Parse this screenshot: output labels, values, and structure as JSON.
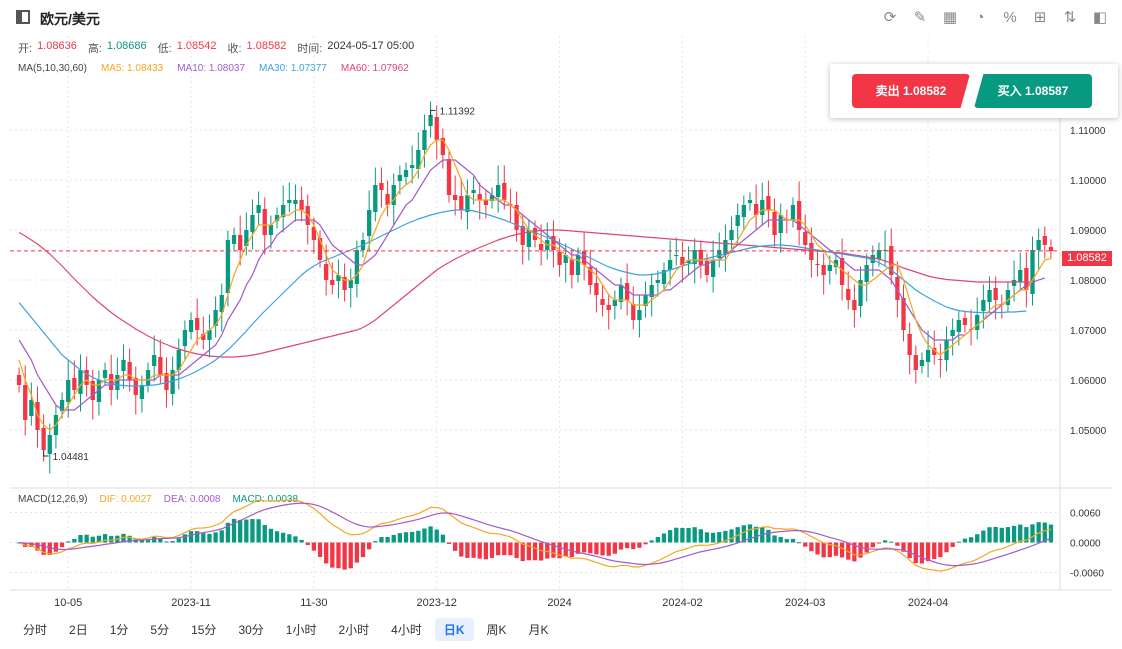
{
  "header": {
    "title": "欧元/美元",
    "tools": [
      {
        "name": "refresh-icon",
        "glyph": "⟳"
      },
      {
        "name": "draw-icon",
        "glyph": "✎"
      },
      {
        "name": "chart-type-icon",
        "glyph": "▦"
      },
      {
        "name": "indicator-icon",
        "glyph": "◔"
      },
      {
        "name": "percent-icon",
        "glyph": "%"
      },
      {
        "name": "layout-icon",
        "glyph": "⊞"
      },
      {
        "name": "compare-icon",
        "glyph": "⇅"
      },
      {
        "name": "panel-icon",
        "glyph": "◧"
      }
    ]
  },
  "ohlc": {
    "open_label": "开:",
    "open": "1.08636",
    "high_label": "高:",
    "high": "1.08686",
    "low_label": "低:",
    "low": "1.08542",
    "close_label": "收:",
    "close": "1.08582",
    "time_label": "时间:",
    "time": "2024-05-17 05:00"
  },
  "ma_legend": {
    "label": "MA(5,10,30,60)",
    "ma5": "MA5: 1.08433",
    "ma10": "MA10: 1.08037",
    "ma30": "MA30: 1.07377",
    "ma60": "MA60: 1.07962"
  },
  "macd_legend": {
    "label": "MACD(12,26,9)",
    "dif": "DIF: 0.0027",
    "dea": "DEA: 0.0008",
    "macd": "MACD: 0.0038"
  },
  "trade": {
    "sell": "卖出 1.08582",
    "buy": "买入 1.08587"
  },
  "current_price": "1.08582",
  "intervals": [
    "分时",
    "2日",
    "1分",
    "5分",
    "15分",
    "30分",
    "1小时",
    "2小时",
    "4小时",
    "日K",
    "周K",
    "月K"
  ],
  "active_interval": "日K",
  "colors": {
    "up": "#089981",
    "down": "#f23645",
    "ma5": "#f5a623",
    "ma10": "#a35bc9",
    "ma30": "#3ba3e0",
    "ma60": "#e0457b",
    "dif": "#f5a623",
    "dea": "#a35bc9"
  },
  "chart_data": {
    "type": "candlestick",
    "price_axis": {
      "min": 1.04,
      "max": 1.12,
      "ticks": [
        "1.11000",
        "1.10000",
        "1.09000",
        "1.08000",
        "1.07000",
        "1.06000",
        "1.05000"
      ],
      "tick_values": [
        1.11,
        1.1,
        1.09,
        1.08,
        1.07,
        1.06,
        1.05
      ]
    },
    "macd_axis": {
      "min": -0.0085,
      "max": 0.0085,
      "ticks": [
        "0.0060",
        "0.0000",
        "-0.0060"
      ],
      "tick_values": [
        0.006,
        0.0,
        -0.006
      ]
    },
    "x_labels": [
      {
        "label": "10-05",
        "index": 8
      },
      {
        "label": "2023-11",
        "index": 28
      },
      {
        "label": "11-30",
        "index": 48
      },
      {
        "label": "2023-12",
        "index": 68
      },
      {
        "label": "2024",
        "index": 88
      },
      {
        "label": "2024-02",
        "index": 108
      },
      {
        "label": "2024-03",
        "index": 128
      },
      {
        "label": "2024-04",
        "index": 148
      }
    ],
    "annotations": {
      "high_label": "1.11392",
      "high_value": 1.11392,
      "low_label": "1.04481",
      "low_value": 1.04481
    },
    "closes": [
      1.059,
      1.052,
      1.056,
      1.05,
      1.046,
      1.049,
      1.053,
      1.056,
      1.06,
      1.058,
      1.062,
      1.059,
      1.056,
      1.06,
      1.062,
      1.058,
      1.061,
      1.064,
      1.06,
      1.057,
      1.059,
      1.062,
      1.065,
      1.061,
      1.058,
      1.062,
      1.066,
      1.07,
      1.072,
      1.07,
      1.068,
      1.07,
      1.074,
      1.077,
      1.088,
      1.089,
      1.086,
      1.09,
      1.093,
      1.095,
      1.089,
      1.091,
      1.093,
      1.095,
      1.096,
      1.096,
      1.094,
      1.091,
      1.088,
      1.084,
      1.08,
      1.079,
      1.081,
      1.078,
      1.08,
      1.086,
      1.088,
      1.094,
      1.099,
      1.098,
      1.095,
      1.099,
      1.101,
      1.102,
      1.103,
      1.106,
      1.11,
      1.113,
      1.108,
      1.105,
      1.097,
      1.096,
      1.094,
      1.097,
      1.098,
      1.096,
      1.095,
      1.097,
      1.099,
      1.096,
      1.095,
      1.09,
      1.087,
      1.09,
      1.088,
      1.086,
      1.088,
      1.086,
      1.083,
      1.085,
      1.081,
      1.085,
      1.083,
      1.079,
      1.077,
      1.075,
      1.074,
      1.076,
      1.079,
      1.076,
      1.072,
      1.074,
      1.077,
      1.079,
      1.08,
      1.082,
      1.084,
      1.085,
      1.083,
      1.084,
      1.086,
      1.083,
      1.081,
      1.084,
      1.086,
      1.088,
      1.09,
      1.093,
      1.095,
      1.096,
      1.093,
      1.096,
      1.094,
      1.089,
      1.093,
      1.092,
      1.095,
      1.09,
      1.087,
      1.084,
      1.083,
      1.081,
      1.083,
      1.084,
      1.079,
      1.076,
      1.074,
      1.08,
      1.083,
      1.085,
      1.086,
      1.086,
      1.081,
      1.076,
      1.07,
      1.065,
      1.062,
      1.064,
      1.066,
      1.065,
      1.064,
      1.068,
      1.07,
      1.072,
      1.071,
      1.07,
      1.073,
      1.076,
      1.078,
      1.076,
      1.075,
      1.078,
      1.08,
      1.082,
      1.078,
      1.086,
      1.088,
      1.087,
      1.0858
    ],
    "ma5": [
      1.064,
      1.06,
      1.057,
      1.053,
      1.051,
      1.05,
      1.051,
      1.053,
      1.055,
      1.057,
      1.059,
      1.06,
      1.059,
      1.059,
      1.06,
      1.06,
      1.06,
      1.061,
      1.061,
      1.06,
      1.06,
      1.06,
      1.061,
      1.061,
      1.061,
      1.061,
      1.062,
      1.064,
      1.066,
      1.068,
      1.069,
      1.07,
      1.071,
      1.073,
      1.077,
      1.081,
      1.084,
      1.087,
      1.089,
      1.091,
      1.091,
      1.091,
      1.092,
      1.093,
      1.093,
      1.094,
      1.094,
      1.093,
      1.091,
      1.088,
      1.085,
      1.082,
      1.081,
      1.08,
      1.08,
      1.081,
      1.083,
      1.087,
      1.09,
      1.093,
      1.095,
      1.096,
      1.098,
      1.099,
      1.1,
      1.102,
      1.105,
      1.107,
      1.108,
      1.108,
      1.106,
      1.103,
      1.1,
      1.097,
      1.096,
      1.096,
      1.096,
      1.096,
      1.096,
      1.096,
      1.095,
      1.094,
      1.092,
      1.09,
      1.089,
      1.088,
      1.087,
      1.087,
      1.086,
      1.085,
      1.084,
      1.084,
      1.083,
      1.082,
      1.081,
      1.079,
      1.077,
      1.076,
      1.076,
      1.076,
      1.075,
      1.075,
      1.075,
      1.076,
      1.077,
      1.078,
      1.08,
      1.082,
      1.083,
      1.084,
      1.084,
      1.084,
      1.084,
      1.084,
      1.084,
      1.084,
      1.086,
      1.088,
      1.09,
      1.092,
      1.093,
      1.094,
      1.094,
      1.094,
      1.093,
      1.092,
      1.092,
      1.092,
      1.091,
      1.089,
      1.087,
      1.086,
      1.084,
      1.083,
      1.082,
      1.081,
      1.08,
      1.079,
      1.079,
      1.08,
      1.081,
      1.082,
      1.083,
      1.083,
      1.08,
      1.076,
      1.072,
      1.069,
      1.067,
      1.066,
      1.065,
      1.066,
      1.067,
      1.068,
      1.069,
      1.07,
      1.071,
      1.072,
      1.074,
      1.075,
      1.075,
      1.076,
      1.077,
      1.078,
      1.078,
      1.08,
      1.082,
      1.084,
      1.0843
    ],
    "ma10": [
      1.068,
      1.066,
      1.064,
      1.061,
      1.059,
      1.057,
      1.055,
      1.054,
      1.054,
      1.054,
      1.055,
      1.056,
      1.057,
      1.058,
      1.059,
      1.059,
      1.06,
      1.06,
      1.06,
      1.06,
      1.06,
      1.06,
      1.06,
      1.061,
      1.061,
      1.061,
      1.061,
      1.062,
      1.063,
      1.064,
      1.065,
      1.066,
      1.067,
      1.069,
      1.072,
      1.074,
      1.076,
      1.079,
      1.081,
      1.084,
      1.086,
      1.087,
      1.089,
      1.09,
      1.091,
      1.092,
      1.092,
      1.092,
      1.092,
      1.091,
      1.089,
      1.087,
      1.086,
      1.085,
      1.084,
      1.083,
      1.083,
      1.084,
      1.085,
      1.087,
      1.089,
      1.091,
      1.093,
      1.095,
      1.096,
      1.098,
      1.1,
      1.102,
      1.103,
      1.104,
      1.104,
      1.104,
      1.103,
      1.102,
      1.101,
      1.099,
      1.098,
      1.097,
      1.096,
      1.095,
      1.095,
      1.094,
      1.093,
      1.092,
      1.091,
      1.09,
      1.089,
      1.088,
      1.087,
      1.086,
      1.085,
      1.085,
      1.084,
      1.083,
      1.082,
      1.081,
      1.08,
      1.079,
      1.079,
      1.078,
      1.077,
      1.077,
      1.077,
      1.077,
      1.077,
      1.078,
      1.078,
      1.079,
      1.08,
      1.081,
      1.082,
      1.083,
      1.083,
      1.084,
      1.084,
      1.085,
      1.086,
      1.087,
      1.088,
      1.089,
      1.09,
      1.091,
      1.092,
      1.092,
      1.092,
      1.092,
      1.092,
      1.091,
      1.09,
      1.089,
      1.088,
      1.087,
      1.086,
      1.085,
      1.084,
      1.083,
      1.082,
      1.082,
      1.082,
      1.082,
      1.082,
      1.081,
      1.08,
      1.078,
      1.076,
      1.074,
      1.072,
      1.07,
      1.069,
      1.068,
      1.068,
      1.068,
      1.068,
      1.069,
      1.069,
      1.07,
      1.071,
      1.072,
      1.073,
      1.074,
      1.075,
      1.076,
      1.077,
      1.078,
      1.079,
      1.0795,
      1.08,
      1.0804
    ],
    "ma30": [
      1.0755,
      1.074,
      1.0725,
      1.071,
      1.0695,
      1.068,
      1.0665,
      1.065,
      1.064,
      1.063,
      1.062,
      1.0612,
      1.0605,
      1.06,
      1.0596,
      1.0592,
      1.059,
      1.0589,
      1.0588,
      1.0588,
      1.0588,
      1.0589,
      1.059,
      1.0592,
      1.0595,
      1.0598,
      1.0602,
      1.0607,
      1.0612,
      1.0618,
      1.0625,
      1.0632,
      1.064,
      1.065,
      1.066,
      1.0672,
      1.0685,
      1.0698,
      1.0712,
      1.0725,
      1.0738,
      1.075,
      1.0762,
      1.0774,
      1.0786,
      1.0798,
      1.081,
      1.082,
      1.0828,
      1.0835,
      1.084,
      1.0845,
      1.085,
      1.0855,
      1.086,
      1.0865,
      1.087,
      1.0876,
      1.0882,
      1.0888,
      1.0894,
      1.09,
      1.0906,
      1.0912,
      1.0917,
      1.0922,
      1.0926,
      1.093,
      1.0933,
      1.0936,
      1.0938,
      1.094,
      1.094,
      1.094,
      1.0938,
      1.0935,
      1.0932,
      1.0928,
      1.0924,
      1.092,
      1.0915,
      1.091,
      1.0905,
      1.09,
      1.0895,
      1.089,
      1.0885,
      1.088,
      1.0874,
      1.0868,
      1.0862,
      1.0856,
      1.085,
      1.0844,
      1.0838,
      1.0832,
      1.0826,
      1.0822,
      1.0818,
      1.0815,
      1.0812,
      1.081,
      1.081,
      1.0811,
      1.0813,
      1.0816,
      1.082,
      1.0824,
      1.0828,
      1.0832,
      1.0836,
      1.084,
      1.0843,
      1.0846,
      1.0849,
      1.0852,
      1.0855,
      1.0858,
      1.0861,
      1.0864,
      1.0866,
      1.0868,
      1.0869,
      1.087,
      1.087,
      1.0869,
      1.0868,
      1.0866,
      1.0864,
      1.0862,
      1.086,
      1.0858,
      1.0856,
      1.0854,
      1.0852,
      1.085,
      1.0848,
      1.0846,
      1.0844,
      1.084,
      1.0835,
      1.0828,
      1.082,
      1.081,
      1.08,
      1.079,
      1.078,
      1.0772,
      1.0765,
      1.0758,
      1.0752,
      1.0746,
      1.0742,
      1.0739,
      1.0737,
      1.0736,
      1.0735,
      1.0735,
      1.0735,
      1.0735,
      1.0735,
      1.0736,
      1.0736,
      1.0737,
      1.0738
    ],
    "ma60": [
      1.0895,
      1.0888,
      1.088,
      1.0872,
      1.0862,
      1.0852,
      1.084,
      1.0828,
      1.0815,
      1.0802,
      1.079,
      1.0778,
      1.0766,
      1.0755,
      1.0745,
      1.0735,
      1.0726,
      1.0718,
      1.071,
      1.0702,
      1.0695,
      1.0688,
      1.0682,
      1.0676,
      1.0671,
      1.0666,
      1.0662,
      1.0658,
      1.0655,
      1.0652,
      1.065,
      1.0648,
      1.0647,
      1.0646,
      1.0646,
      1.0646,
      1.0647,
      1.0648,
      1.065,
      1.0652,
      1.0655,
      1.0658,
      1.0661,
      1.0664,
      1.0667,
      1.067,
      1.0673,
      1.0676,
      1.0679,
      1.0682,
      1.0685,
      1.0688,
      1.0691,
      1.0694,
      1.0697,
      1.07,
      1.0705,
      1.0712,
      1.072,
      1.073,
      1.074,
      1.075,
      1.076,
      1.077,
      1.078,
      1.079,
      1.08,
      1.081,
      1.082,
      1.0828,
      1.0835,
      1.0842,
      1.0848,
      1.0854,
      1.086,
      1.0865,
      1.087,
      1.0875,
      1.088,
      1.0884,
      1.0888,
      1.0891,
      1.0894,
      1.0896,
      1.0898,
      1.0899,
      1.09,
      1.09,
      1.09,
      1.0899,
      1.0898,
      1.0897,
      1.0896,
      1.0895,
      1.0894,
      1.0893,
      1.0892,
      1.0891,
      1.089,
      1.0889,
      1.0888,
      1.0887,
      1.0886,
      1.0885,
      1.0884,
      1.0883,
      1.0882,
      1.0881,
      1.088,
      1.0879,
      1.0878,
      1.0877,
      1.0876,
      1.0875,
      1.0874,
      1.0873,
      1.0872,
      1.0871,
      1.087,
      1.0869,
      1.0868,
      1.0867,
      1.0866,
      1.0865,
      1.0864,
      1.0863,
      1.0862,
      1.0861,
      1.086,
      1.0859,
      1.0858,
      1.0857,
      1.0856,
      1.0855,
      1.0854,
      1.0852,
      1.085,
      1.0848,
      1.0846,
      1.0844,
      1.0842,
      1.0838,
      1.0834,
      1.0829,
      1.0824,
      1.082,
      1.0816,
      1.0812,
      1.0808,
      1.0805,
      1.0803,
      1.0801,
      1.08,
      1.0799,
      1.0798,
      1.0797,
      1.0796,
      1.0796,
      1.0796,
      1.0796,
      1.0796,
      1.0796,
      1.0796,
      1.0796,
      1.0796,
      1.0796
    ]
  }
}
